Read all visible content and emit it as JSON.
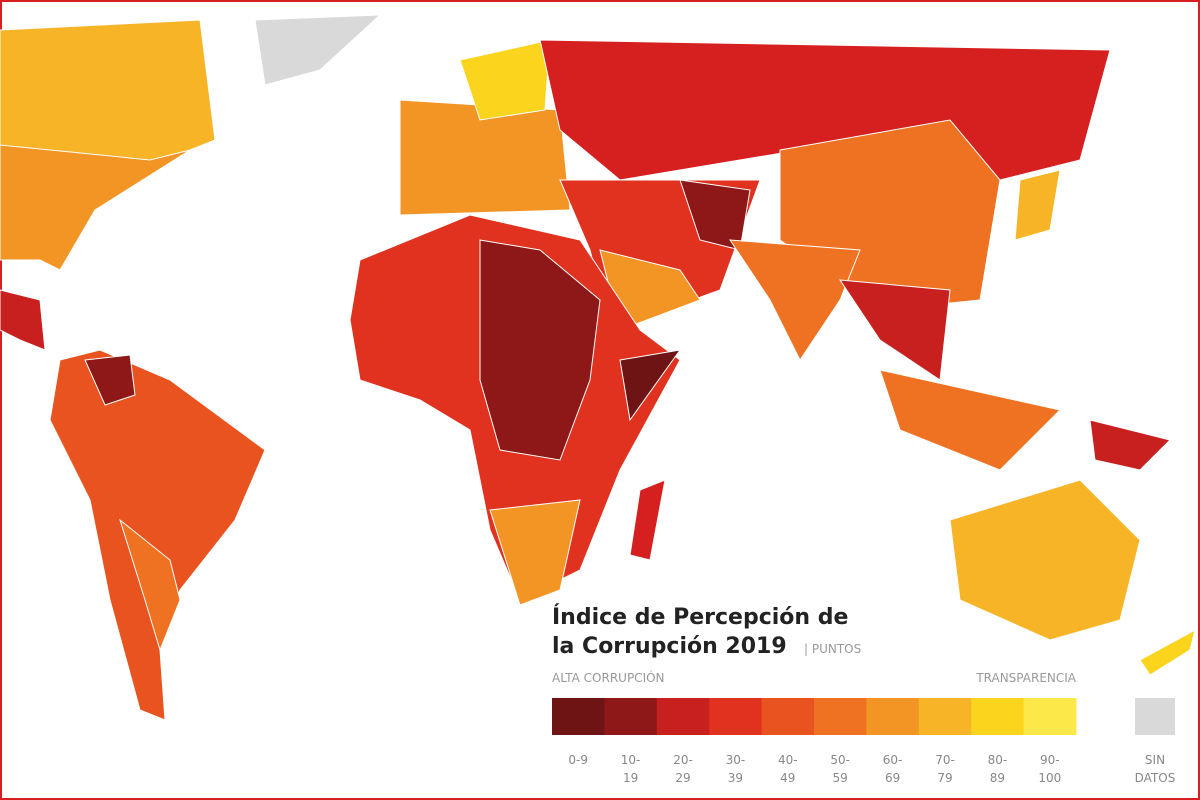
{
  "title": {
    "line1": "Índice de Percepción de",
    "line2": "la Corrupción 2019",
    "unit": "| PUNTOS"
  },
  "legend": {
    "low_label": "ALTA CORRUPCIÓN",
    "high_label": "TRANSPARENCIA",
    "bins": [
      {
        "top": "0-9",
        "color": "#6e1414"
      },
      {
        "top": "10-",
        "bottom": "19",
        "color": "#8e1818"
      },
      {
        "top": "20-",
        "bottom": "29",
        "color": "#c81f1f"
      },
      {
        "top": "30-",
        "bottom": "39",
        "color": "#e0321e"
      },
      {
        "top": "40-",
        "bottom": "49",
        "color": "#e8531f"
      },
      {
        "top": "50-",
        "bottom": "59",
        "color": "#ee7222"
      },
      {
        "top": "60-",
        "bottom": "69",
        "color": "#f39524"
      },
      {
        "top": "70-",
        "bottom": "79",
        "color": "#f7b427"
      },
      {
        "top": "80-",
        "bottom": "89",
        "color": "#fbd41e"
      },
      {
        "top": "90-",
        "bottom": "100",
        "color": "#fde84a"
      }
    ],
    "no_data": {
      "top": "SIN",
      "bottom": "DATOS",
      "color": "#d9d9d9"
    }
  }
}
